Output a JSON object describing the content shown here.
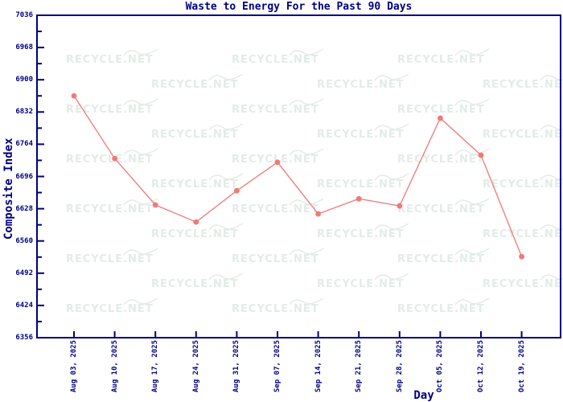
{
  "chart_data": {
    "type": "line",
    "title": "Waste to Energy For the Past 90 Days",
    "xlabel": "Day",
    "ylabel": "Composite Index",
    "categories": [
      "Aug 03, 2025",
      "Aug 10, 2025",
      "Aug 17, 2025",
      "Aug 24, 2025",
      "Aug 31, 2025",
      "Sep 07, 2025",
      "Sep 14, 2025",
      "Sep 21, 2025",
      "Sep 28, 2025",
      "Oct 05, 2025",
      "Oct 12, 2025",
      "Oct 19, 2025"
    ],
    "series": [
      {
        "name": "Composite Index",
        "values": [
          6866,
          6734,
          6636,
          6600,
          6666,
          6726,
          6617,
          6649,
          6634,
          6819,
          6741,
          6527
        ]
      }
    ],
    "ylim": [
      6356,
      7036
    ],
    "y_ticks": [
      7036,
      6968,
      6900,
      6832,
      6764,
      6696,
      6628,
      6560,
      6492,
      6424,
      6356
    ],
    "grid": false,
    "legend": "none"
  },
  "watermark": {
    "text": "RECYCLE.NET",
    "color": "#e3ece7"
  },
  "colors": {
    "axis": "#000080",
    "text": "#000080",
    "line": "#f08080",
    "marker": "#ef7a77",
    "background": "#ffffff"
  }
}
